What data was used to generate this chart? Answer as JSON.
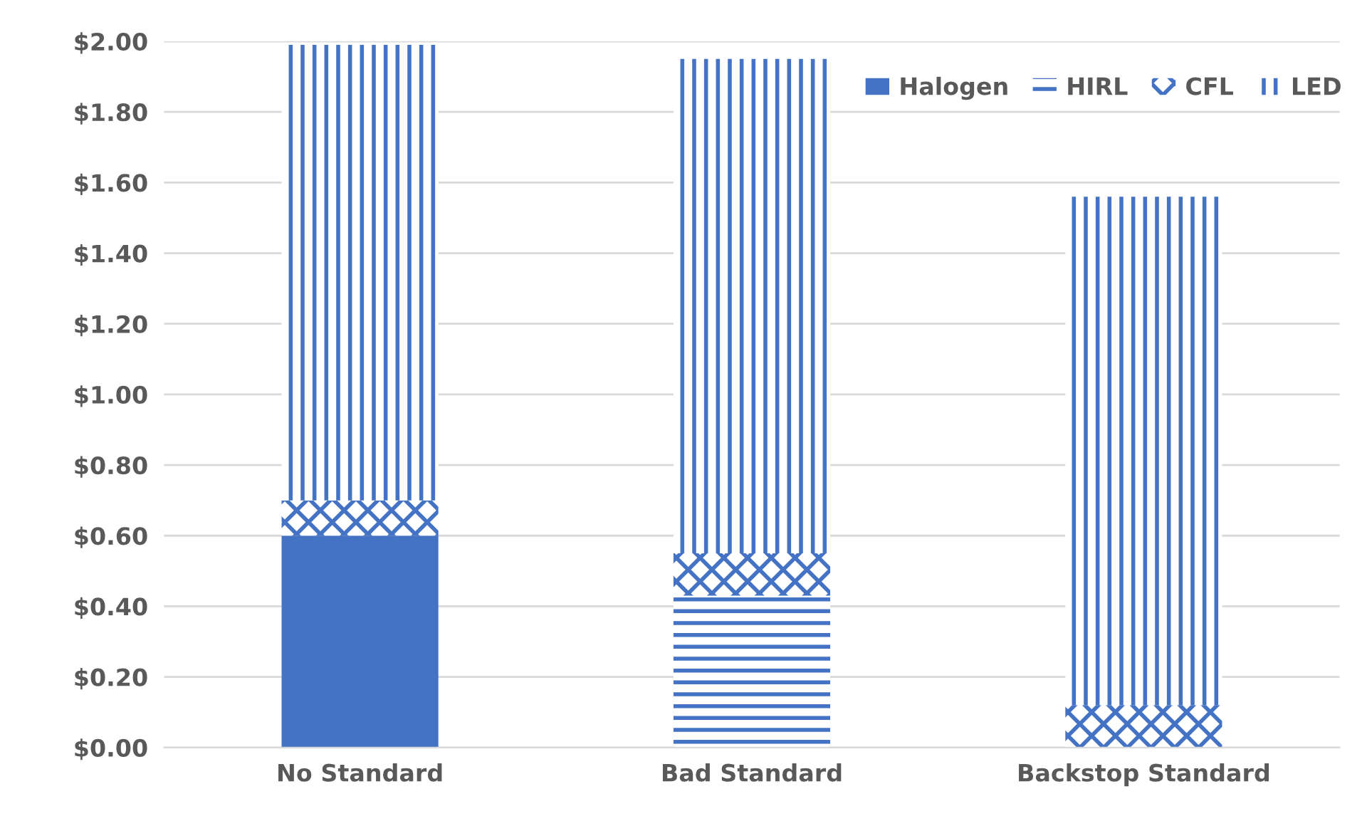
{
  "chart_data": {
    "type": "bar",
    "stacked": true,
    "categories": [
      "No Standard",
      "Bad Standard",
      "Backstop Standard"
    ],
    "series": [
      {
        "name": "Halogen",
        "color": "#4472c4",
        "values": [
          0.6,
          0,
          0
        ]
      },
      {
        "name": "HIRL",
        "color": "#4472c4",
        "values": [
          0,
          0.43,
          0
        ]
      },
      {
        "name": "CFL",
        "color": "#4472c4",
        "values": [
          0.1,
          0.12,
          0.12
        ]
      },
      {
        "name": "LED",
        "color": "#4472c4",
        "values": [
          1.29,
          1.4,
          1.44
        ]
      }
    ],
    "ylim": [
      0,
      2
    ],
    "yticks": [
      {
        "value": 0,
        "label": "$0.00"
      },
      {
        "value": 0.2,
        "label": "$0.20"
      },
      {
        "value": 0.4,
        "label": "$0.40"
      },
      {
        "value": 0.6,
        "label": "$0.60"
      },
      {
        "value": 0.8,
        "label": "$0.80"
      },
      {
        "value": 1.0,
        "label": "$1.00"
      },
      {
        "value": 1.2,
        "label": "$1.20"
      },
      {
        "value": 1.4,
        "label": "$1.40"
      },
      {
        "value": 1.6,
        "label": "$1.60"
      },
      {
        "value": 1.8,
        "label": "$1.80"
      },
      {
        "value": 2.0,
        "label": "$2.00"
      }
    ],
    "grid": "y",
    "legend": "top right"
  }
}
